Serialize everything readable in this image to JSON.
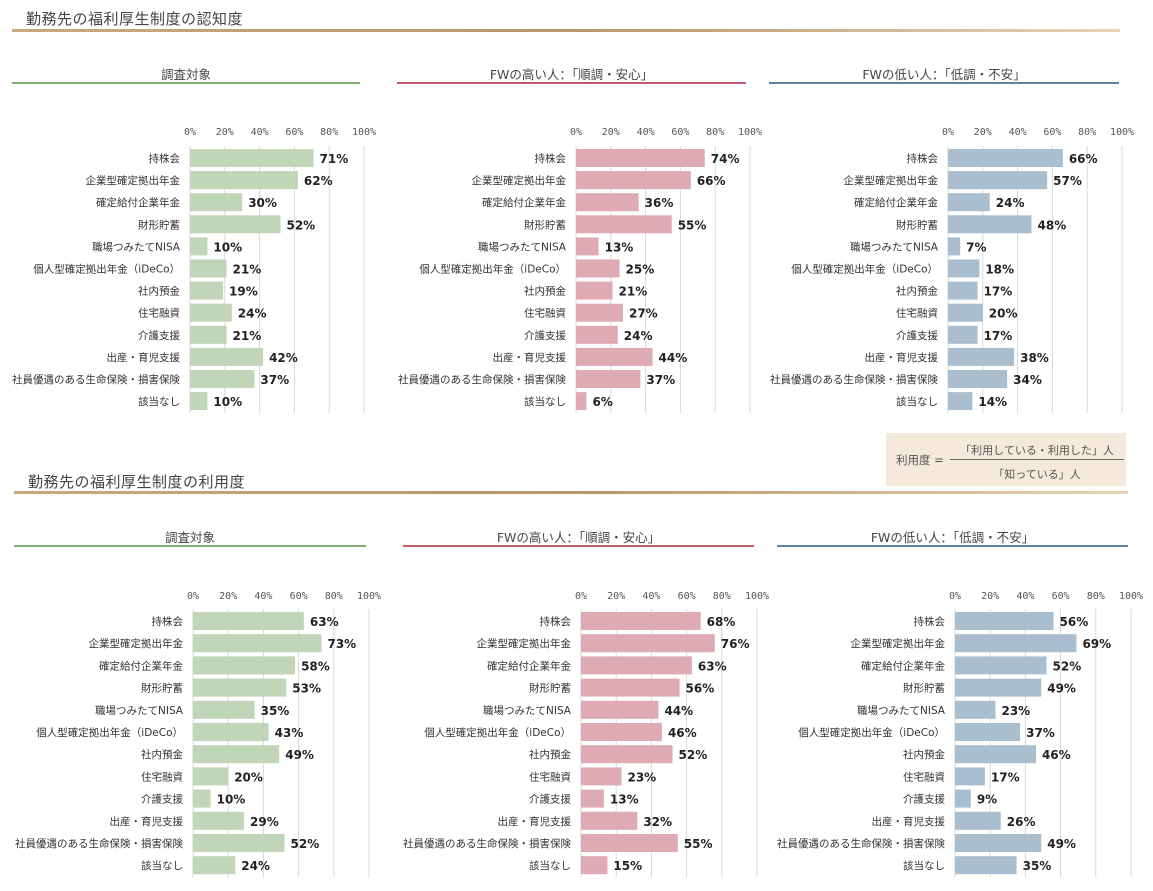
{
  "sections": [
    {
      "title": "勤務先の福利厚生制度の認知度",
      "panels": [
        {
          "title": "調査対象",
          "color": "#c1d5b9",
          "rule_color": "#7fae6c",
          "values": [
            71,
            62,
            30,
            52,
            10,
            21,
            19,
            24,
            21,
            42,
            37,
            10
          ]
        },
        {
          "title": "FWの高い人：「順調・安心」",
          "color": "#deaab4",
          "rule_color": "#c05a6e",
          "values": [
            74,
            66,
            36,
            55,
            13,
            25,
            21,
            27,
            24,
            44,
            37,
            6
          ]
        },
        {
          "title": "FWの低い人：「低調・不安」",
          "color": "#a9bfcf",
          "rule_color": "#5e84a5",
          "values": [
            66,
            57,
            24,
            48,
            7,
            18,
            17,
            20,
            17,
            38,
            34,
            14
          ]
        }
      ]
    },
    {
      "title": "勤務先の福利厚生制度の利用度",
      "panels": [
        {
          "title": "調査対象",
          "color": "#c1d5b9",
          "rule_color": "#7fae6c",
          "values": [
            63,
            73,
            58,
            53,
            35,
            43,
            49,
            20,
            10,
            29,
            52,
            24
          ]
        },
        {
          "title": "FWの高い人：「順調・安心」",
          "color": "#deaab4",
          "rule_color": "#c05a6e",
          "values": [
            68,
            76,
            63,
            56,
            44,
            46,
            52,
            23,
            13,
            32,
            55,
            15
          ]
        },
        {
          "title": "FWの低い人：「低調・不安」",
          "color": "#a9bfcf",
          "rule_color": "#5e84a5",
          "values": [
            56,
            69,
            52,
            49,
            23,
            37,
            46,
            17,
            9,
            26,
            49,
            35
          ]
        }
      ]
    }
  ],
  "formula": {
    "lhs": "利用度 =",
    "numerator": "「利用している・利用した」人",
    "denominator": "「知っている」人"
  },
  "chart_data": {
    "type": "bar",
    "orientation": "horizontal",
    "unit": "%",
    "xlim": [
      0,
      100
    ],
    "ticks": [
      "0%",
      "20%",
      "40%",
      "60%",
      "80%",
      "100%"
    ],
    "categories": [
      "持株会",
      "企業型確定拠出年金",
      "確定給付企業年金",
      "財形貯蓄",
      "職場つみたてNISA",
      "個人型確定拠出年金（iDeCo）",
      "社内預金",
      "住宅融資",
      "介護支援",
      "出産・育児支援",
      "社員優遇のある生命保険・損害保険",
      "該当なし"
    ]
  }
}
